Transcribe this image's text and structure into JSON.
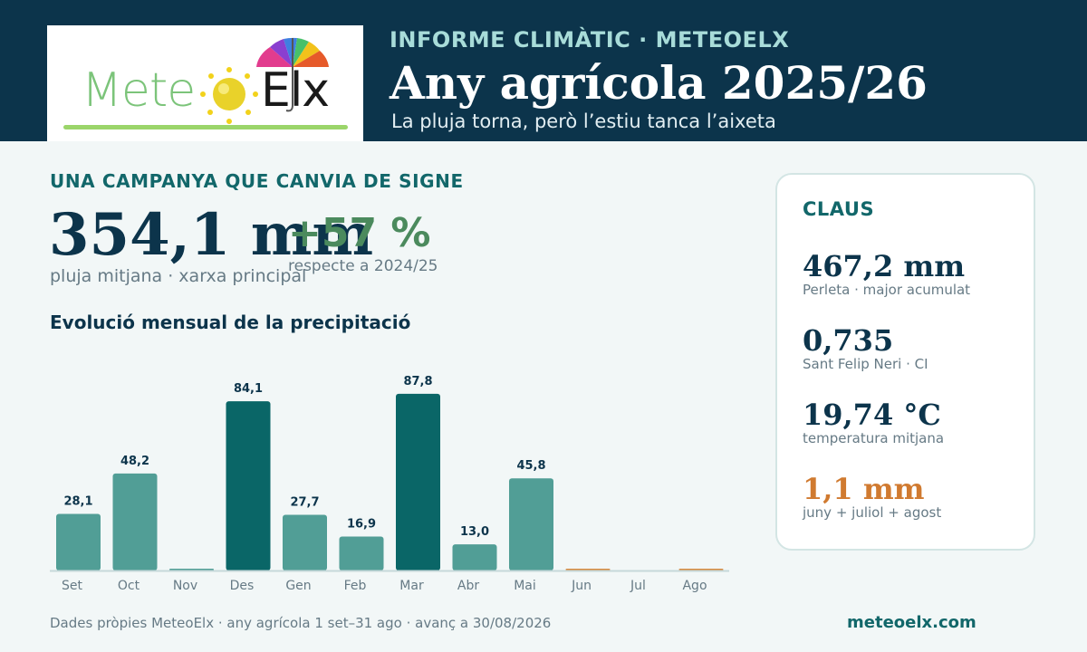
{
  "header": {
    "kicker": "INFORME CLIMÀTIC · METEOELX",
    "title": "Any agrícola 2025/26",
    "subtitle": "La pluja torna, però l’estiu tanca l’aixeta",
    "logo": {
      "text_left": "Mete",
      "text_right": "Elx",
      "accent": "#7cc47a"
    }
  },
  "summary": {
    "kicker": "UNA CAMPANYA QUE CANVIA DE SIGNE",
    "value": "354,1 mm",
    "caption": "pluja mitjana · xarxa principal",
    "change_value": "+57 %",
    "change_caption": "respecte a 2024/25"
  },
  "chart_title": "Evolució mensual de la precipitació",
  "chart_data": {
    "type": "bar",
    "categories": [
      "Set",
      "Oct",
      "Nov",
      "Des",
      "Gen",
      "Feb",
      "Mar",
      "Abr",
      "Mai",
      "Jun",
      "Jul",
      "Ago"
    ],
    "values": [
      28.1,
      48.2,
      0.8,
      84.1,
      27.7,
      16.9,
      87.8,
      13.0,
      45.8,
      0.2,
      0,
      0.9
    ],
    "labels": [
      "28,1",
      "48,2",
      "",
      "84,1",
      "27,7",
      "16,9",
      "87,8",
      "13,0",
      "45,8",
      "",
      "",
      ""
    ],
    "highlight_threshold": 80,
    "colors": {
      "normal": "#519e96",
      "highlight": "#0a6667",
      "summer": "#d68a3f"
    },
    "ylim": [
      0,
      90
    ],
    "grid": false
  },
  "panel": {
    "title": "CLAUS",
    "items": [
      {
        "value": "467,2 mm",
        "label": "Perleta · major acumulat",
        "color": "#0c344b"
      },
      {
        "value": "0,735",
        "label": "Sant Felip Neri · CI",
        "color": "#0c344b"
      },
      {
        "value": "19,74 °C",
        "label": "temperatura mitjana",
        "color": "#0c344b"
      },
      {
        "value": "1,1 mm",
        "label": "juny + juliol + agost",
        "color": "#d07a30"
      }
    ]
  },
  "footer": {
    "note": "Dades pròpies MeteoElx · any agrícola 1 set–31 ago · avanç a 30/08/2026",
    "url": "meteoelx.com"
  }
}
